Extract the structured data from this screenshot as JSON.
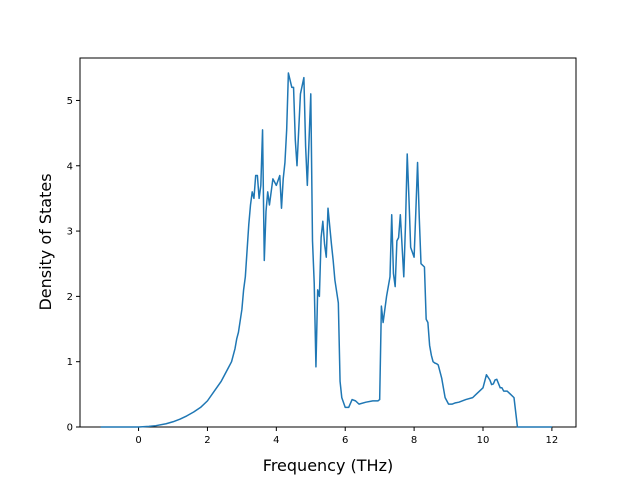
{
  "chart_data": {
    "type": "line",
    "title": "",
    "xlabel": "Frequency (THz)",
    "ylabel": "Density of States",
    "xlim": [
      -1.7,
      12.7
    ],
    "ylim": [
      0,
      5.65
    ],
    "xticks": [
      0,
      2,
      4,
      6,
      8,
      10,
      12
    ],
    "yticks": [
      0,
      1,
      2,
      3,
      4,
      5
    ],
    "grid": false,
    "line_color": "#1f77b4",
    "series": [
      {
        "x": [
          -1.1,
          -0.5,
          0.0,
          0.3,
          0.5,
          0.8,
          1.0,
          1.2,
          1.4,
          1.6,
          1.8,
          2.0,
          2.2,
          2.4,
          2.5,
          2.6,
          2.7,
          2.8,
          2.85,
          2.9,
          3.0,
          3.05,
          3.1,
          3.2,
          3.25,
          3.3,
          3.35,
          3.4,
          3.45,
          3.5,
          3.55,
          3.6,
          3.65,
          3.7,
          3.75,
          3.8,
          3.9,
          4.0,
          4.1,
          4.15,
          4.2,
          4.25,
          4.3,
          4.35,
          4.45,
          4.5,
          4.55,
          4.6,
          4.7,
          4.8,
          4.85,
          4.9,
          5.0,
          5.05,
          5.1,
          5.15,
          5.2,
          5.25,
          5.3,
          5.35,
          5.4,
          5.45,
          5.5,
          5.6,
          5.65,
          5.7,
          5.8,
          5.85,
          5.9,
          6.0,
          6.1,
          6.2,
          6.3,
          6.4,
          6.6,
          6.8,
          6.95,
          7.0,
          7.05,
          7.1,
          7.2,
          7.3,
          7.35,
          7.4,
          7.45,
          7.5,
          7.55,
          7.6,
          7.7,
          7.75,
          7.8,
          7.85,
          7.9,
          8.0,
          8.05,
          8.1,
          8.15,
          8.2,
          8.3,
          8.35,
          8.4,
          8.45,
          8.5,
          8.55,
          8.6,
          8.65,
          8.7,
          8.8,
          8.9,
          9.0,
          9.1,
          9.2,
          9.3,
          9.5,
          9.7,
          9.8,
          9.9,
          10.0,
          10.1,
          10.2,
          10.25,
          10.3,
          10.35,
          10.4,
          10.5,
          10.55,
          10.6,
          10.7,
          10.8,
          10.9,
          11.0,
          11.5,
          12.0
        ],
        "values": [
          0.0,
          0.0,
          0.0,
          0.01,
          0.02,
          0.05,
          0.08,
          0.12,
          0.17,
          0.23,
          0.3,
          0.4,
          0.55,
          0.7,
          0.8,
          0.9,
          1.0,
          1.2,
          1.35,
          1.45,
          1.8,
          2.1,
          2.3,
          3.1,
          3.4,
          3.6,
          3.5,
          3.85,
          3.85,
          3.5,
          3.7,
          4.55,
          2.55,
          3.3,
          3.6,
          3.4,
          3.8,
          3.7,
          3.85,
          3.35,
          3.8,
          4.05,
          4.55,
          5.42,
          5.2,
          5.2,
          4.4,
          4.0,
          5.1,
          5.35,
          4.3,
          3.7,
          5.1,
          2.85,
          2.2,
          0.92,
          2.1,
          2.0,
          2.9,
          3.15,
          2.8,
          2.6,
          3.35,
          2.8,
          2.55,
          2.25,
          1.9,
          0.7,
          0.45,
          0.3,
          0.3,
          0.42,
          0.4,
          0.35,
          0.38,
          0.4,
          0.4,
          0.42,
          1.85,
          1.6,
          2.0,
          2.3,
          3.25,
          2.35,
          2.15,
          2.85,
          2.9,
          3.25,
          2.3,
          3.1,
          4.18,
          3.5,
          2.75,
          2.6,
          3.3,
          4.05,
          3.2,
          2.5,
          2.45,
          1.65,
          1.6,
          1.25,
          1.1,
          1.0,
          0.98,
          0.97,
          0.95,
          0.75,
          0.45,
          0.35,
          0.35,
          0.37,
          0.38,
          0.42,
          0.45,
          0.5,
          0.55,
          0.6,
          0.8,
          0.72,
          0.65,
          0.66,
          0.72,
          0.73,
          0.6,
          0.6,
          0.55,
          0.55,
          0.5,
          0.45,
          0.0,
          0.0,
          0.0
        ]
      }
    ]
  }
}
